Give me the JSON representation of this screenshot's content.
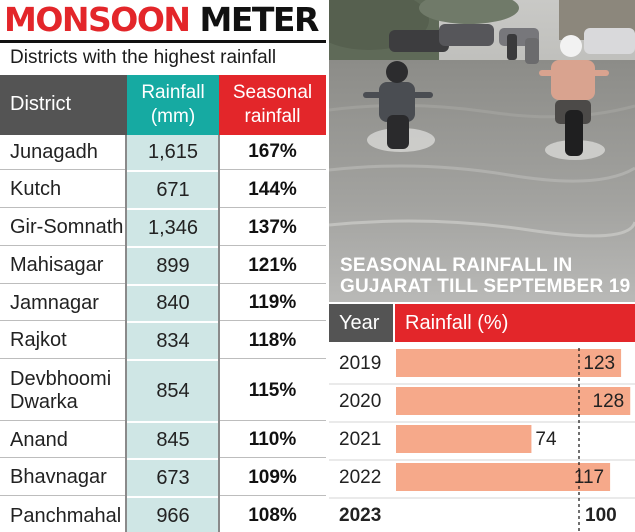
{
  "headline": {
    "part1": "MONSOON",
    "part2": "METER"
  },
  "subtitle": "Districts with the highest rainfall",
  "table": {
    "headers": {
      "district": "District",
      "rain_line1": "Rainfall",
      "rain_line2": "(mm)",
      "season_line1": "Seasonal",
      "season_line2": "rainfall"
    },
    "rows": [
      {
        "district": "Junagadh",
        "rainfall": "1,615",
        "seasonal": "167%"
      },
      {
        "district": "Kutch",
        "rainfall": "671",
        "seasonal": "144%"
      },
      {
        "district": "Gir-Somnath",
        "rainfall": "1,346",
        "seasonal": "137%"
      },
      {
        "district": "Mahisagar",
        "rainfall": "899",
        "seasonal": "121%"
      },
      {
        "district": "Jamnagar",
        "rainfall": "840",
        "seasonal": "119%"
      },
      {
        "district": "Rajkot",
        "rainfall": "834",
        "seasonal": "118%"
      },
      {
        "district_line1": "Devbhoomi",
        "district_line2": "Dwarka",
        "rainfall": "854",
        "seasonal": "115%"
      },
      {
        "district": "Anand",
        "rainfall": "845",
        "seasonal": "110%"
      },
      {
        "district": "Bhavnagar",
        "rainfall": "673",
        "seasonal": "109%"
      },
      {
        "district": "Panchmahal",
        "rainfall": "966",
        "seasonal": "108%"
      }
    ]
  },
  "chart_data": {
    "type": "bar",
    "orientation": "horizontal",
    "title_line1": "SEASONAL RAINFALL IN",
    "title_line2": "GUJARAT TILL SEPTEMBER 19",
    "header_year": "Year",
    "header_value": "Rainfall (%)",
    "categories": [
      "2019",
      "2020",
      "2021",
      "2022",
      "2023"
    ],
    "values": [
      123,
      128,
      74,
      117,
      100
    ],
    "reference_line": 100,
    "highlight_category": "2023",
    "xlim": [
      0,
      130
    ],
    "colors": {
      "bar": "#f6a98a",
      "header_year": "#545454",
      "header_value": "#e3262a",
      "reference": "#111111"
    }
  },
  "colors": {
    "brand_red": "#e3262a",
    "teal": "#16aaa2",
    "teal_light": "#cfe6e5",
    "dark_gray": "#545454"
  }
}
